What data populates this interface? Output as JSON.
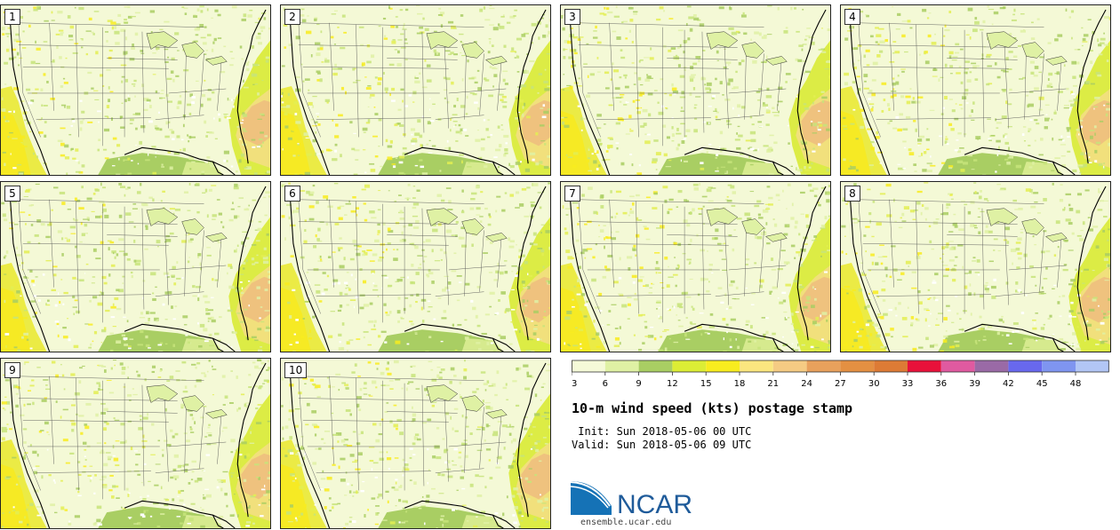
{
  "panels": [
    {
      "label": "1"
    },
    {
      "label": "2"
    },
    {
      "label": "3"
    },
    {
      "label": "4"
    },
    {
      "label": "5"
    },
    {
      "label": "6"
    },
    {
      "label": "7"
    },
    {
      "label": "8"
    },
    {
      "label": "9"
    },
    {
      "label": "10"
    }
  ],
  "colorbar": {
    "ticks": [
      "3",
      "6",
      "9",
      "12",
      "15",
      "18",
      "21",
      "24",
      "27",
      "30",
      "33",
      "36",
      "39",
      "42",
      "45",
      "48"
    ],
    "colors": [
      "#f5fad8",
      "#dff1a4",
      "#a9ce63",
      "#dced35",
      "#f8ec1f",
      "#fbe67f",
      "#f5cb83",
      "#e8a15c",
      "#e49042",
      "#dd7b35",
      "#e8113a",
      "#e05aa0",
      "#9a6aa6",
      "#6868ee",
      "#7f95f0",
      "#b2c6f5"
    ]
  },
  "title": {
    "main": "10-m wind speed (kts) postage stamp",
    "init": " Init: Sun 2018-05-06 00 UTC",
    "valid": "Valid: Sun 2018-05-06 09 UTC"
  },
  "logo": {
    "text": "NCAR",
    "url": "ensemble.ucar.edu",
    "color": "#1f5b9a"
  }
}
